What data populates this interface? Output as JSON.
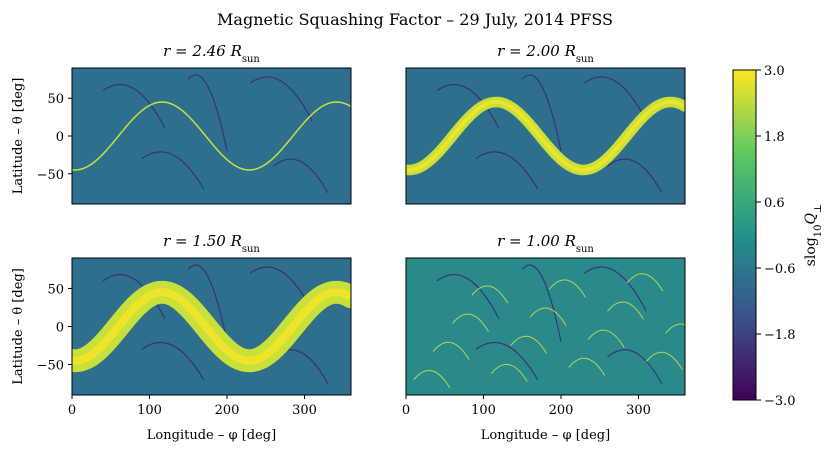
{
  "figure": {
    "title": "Magnetic Squashing Factor – 29 July, 2014 PFSS"
  },
  "chart_data": [
    {
      "type": "heatmap",
      "panel": "top-left",
      "title_prefix": "r = 2.46 ",
      "title_unit": "R",
      "title_sub": "sun",
      "xlabel": "",
      "ylabel": "Latitude – θ [deg]",
      "xlim": [
        0,
        360
      ],
      "ylim": [
        -90,
        90
      ],
      "xticks": [],
      "yticks": [
        50,
        0,
        -50
      ],
      "style": "thin-sheet",
      "band": {
        "amplitude": 45,
        "phase": 60,
        "offset": 0,
        "width": 2
      }
    },
    {
      "type": "heatmap",
      "panel": "top-right",
      "title_prefix": "r = 2.00 ",
      "title_unit": "R",
      "title_sub": "sun",
      "xlabel": "",
      "ylabel": "",
      "xlim": [
        0,
        360
      ],
      "ylim": [
        -90,
        90
      ],
      "xticks": [],
      "yticks": [],
      "style": "thick-band",
      "band": {
        "amplitude": 45,
        "phase": 60,
        "offset": 0,
        "width": 14
      }
    },
    {
      "type": "heatmap",
      "panel": "bottom-left",
      "title_prefix": "r = 1.50 ",
      "title_unit": "R",
      "title_sub": "sun",
      "xlabel": "Longitude – φ [deg]",
      "ylabel": "Latitude – θ [deg]",
      "xlim": [
        0,
        360
      ],
      "ylim": [
        -90,
        90
      ],
      "xticks": [
        0,
        100,
        200,
        300
      ],
      "yticks": [
        50,
        0,
        -50
      ],
      "style": "broad-band",
      "band": {
        "amplitude": 45,
        "phase": 60,
        "offset": 0,
        "width": 30
      }
    },
    {
      "type": "heatmap",
      "panel": "bottom-right",
      "title_prefix": "r = 1.00 ",
      "title_unit": "R",
      "title_sub": "sun",
      "xlabel": "Longitude – φ [deg]",
      "ylabel": "",
      "xlim": [
        0,
        360
      ],
      "ylim": [
        -90,
        90
      ],
      "xticks": [
        0,
        100,
        200,
        300
      ],
      "yticks": [],
      "style": "surface",
      "band": {
        "amplitude": 45,
        "phase": 60,
        "offset": 0,
        "width": 0
      }
    }
  ],
  "colorbar": {
    "label": "slog",
    "label_sub": "10",
    "label_var": "Q",
    "label_symbol": "⊥",
    "range": [
      -3.0,
      3.0
    ],
    "ticks": [
      "3.0",
      "1.8",
      "0.6",
      "−0.6",
      "−1.8",
      "−3.0"
    ],
    "tick_values": [
      3.0,
      1.8,
      0.6,
      -0.6,
      -1.8,
      -3.0
    ],
    "colormap": "viridis",
    "colors": [
      "#440154",
      "#3b528b",
      "#21918c",
      "#5ec962",
      "#fde725"
    ]
  }
}
